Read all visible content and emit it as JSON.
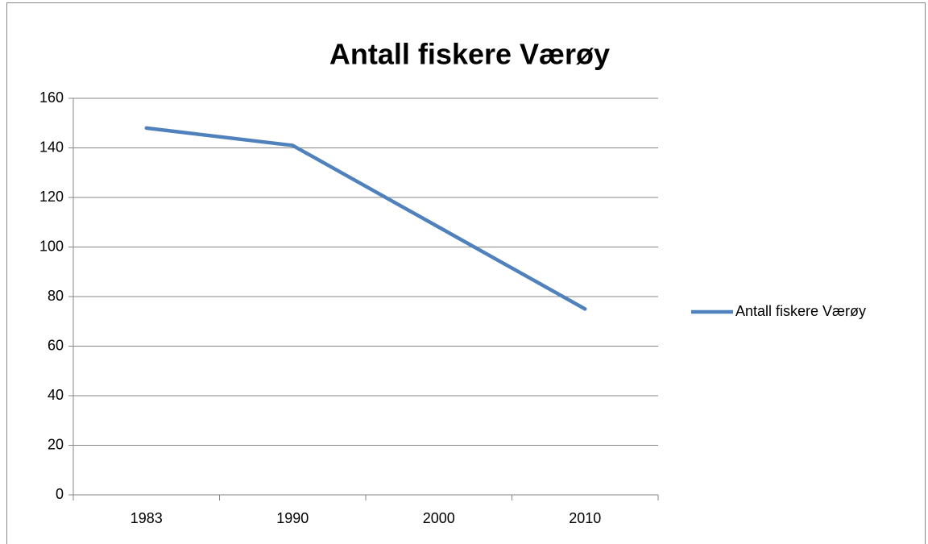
{
  "chart_data": {
    "type": "line",
    "title": "Antall fiskere Værøy",
    "categories": [
      "1983",
      "1990",
      "2000",
      "2010"
    ],
    "series": [
      {
        "name": "Antall fiskere Værøy",
        "color": "#4f81bd",
        "values": [
          148,
          141,
          108,
          75
        ]
      }
    ],
    "ylim": [
      0,
      160
    ],
    "yticks": [
      0,
      20,
      40,
      60,
      80,
      100,
      120,
      140,
      160
    ],
    "grid": true,
    "legend": "right"
  }
}
